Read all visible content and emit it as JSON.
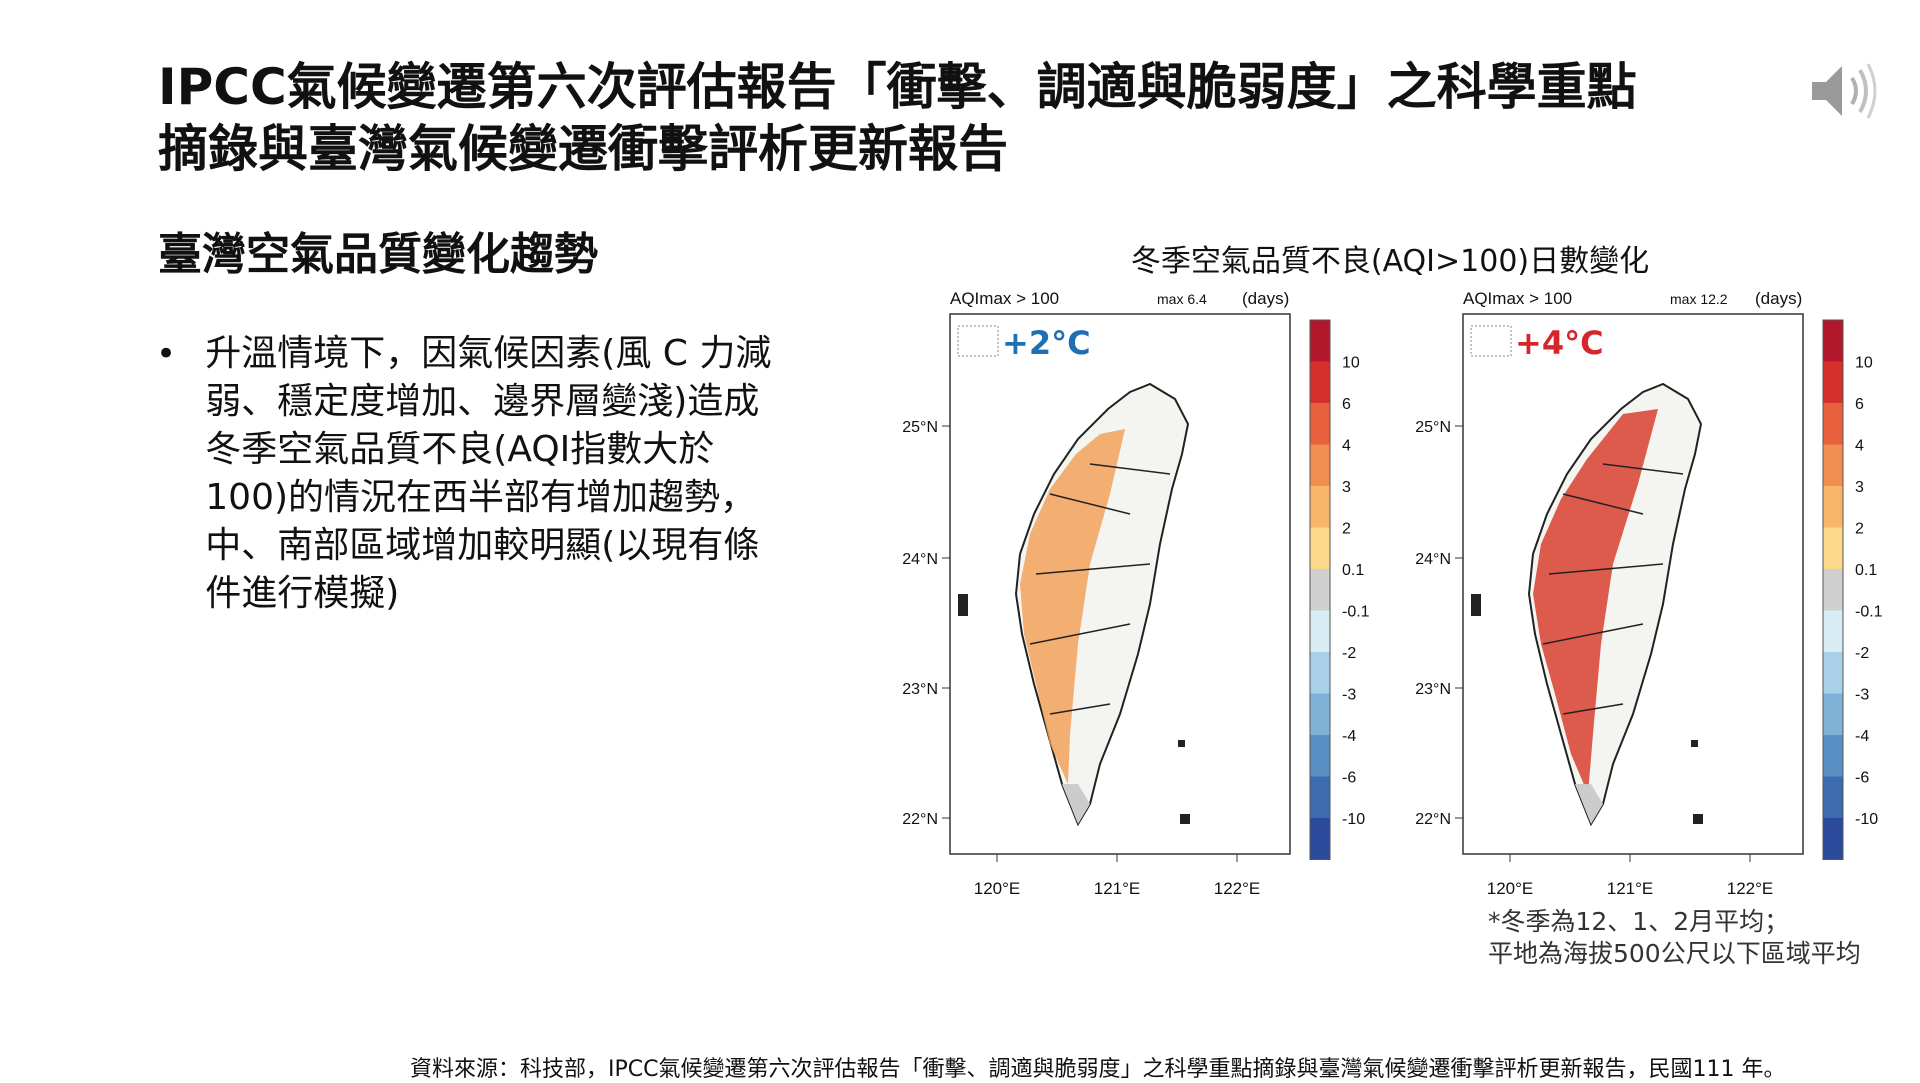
{
  "slide": {
    "title_line1": "IPCC氣候變遷第六次評估報告「衝擊、調適與脆弱度」之科學重點",
    "title_line2": "摘錄與臺灣氣候變遷衝擊評析更新報告",
    "subtitle": "臺灣空氣品質變化趨勢",
    "speaker_icon": "speaker-icon",
    "bullet_lines": [
      "升溫情境下，因氣候因素(風 C 力減",
      "弱、穩定度增加、邊界層變淺)造成",
      "冬季空氣品質不良(AQI指數大於",
      "100)的情況在西半部有增加趨勢，",
      "中、南部區域增加較明顯(以現有條",
      "件進行模擬)"
    ],
    "note_lines": [
      "*冬季為12、1、2月平均；",
      "平地為海拔500公尺以下區域平均"
    ],
    "source": "資料來源：科技部，IPCC氣候變遷第六次評估報告「衝擊、調適與脆弱度」之科學重點摘錄與臺灣氣候變遷衝擊評析更新報告，民國111 年。"
  },
  "figure": {
    "title": "冬季空氣品質不良(AQI>100)日數變化",
    "panels": [
      {
        "header_left": "AQImax > 100",
        "header_mid": "max  6.4",
        "header_right": "(days)",
        "scenario": "+2°C",
        "scenario_color": "#1f6fb4"
      },
      {
        "header_left": "AQImax > 100",
        "header_mid": "max  12.2",
        "header_right": "(days)",
        "scenario": "+4°C",
        "scenario_color": "#d7262b"
      }
    ],
    "lat_labels": [
      "25°N",
      "24°N",
      "23°N",
      "22°N"
    ],
    "lon_labels": [
      "120°E",
      "121°E",
      "122°E"
    ],
    "colorbar_labels": [
      "10",
      "6",
      "4",
      "3",
      "2",
      "0.1",
      "-0.1",
      "-2",
      "-3",
      "-4",
      "-6",
      "-10"
    ],
    "colorbar_colors": [
      "#b2182b",
      "#d6302c",
      "#e8603c",
      "#f28d52",
      "#f7b56a",
      "#fbd88a",
      "#cfcfcf",
      "#d8ecf3",
      "#a9d0e6",
      "#7fb2d6",
      "#5a8fc4",
      "#3d6bb0",
      "#2b4a9c"
    ]
  }
}
